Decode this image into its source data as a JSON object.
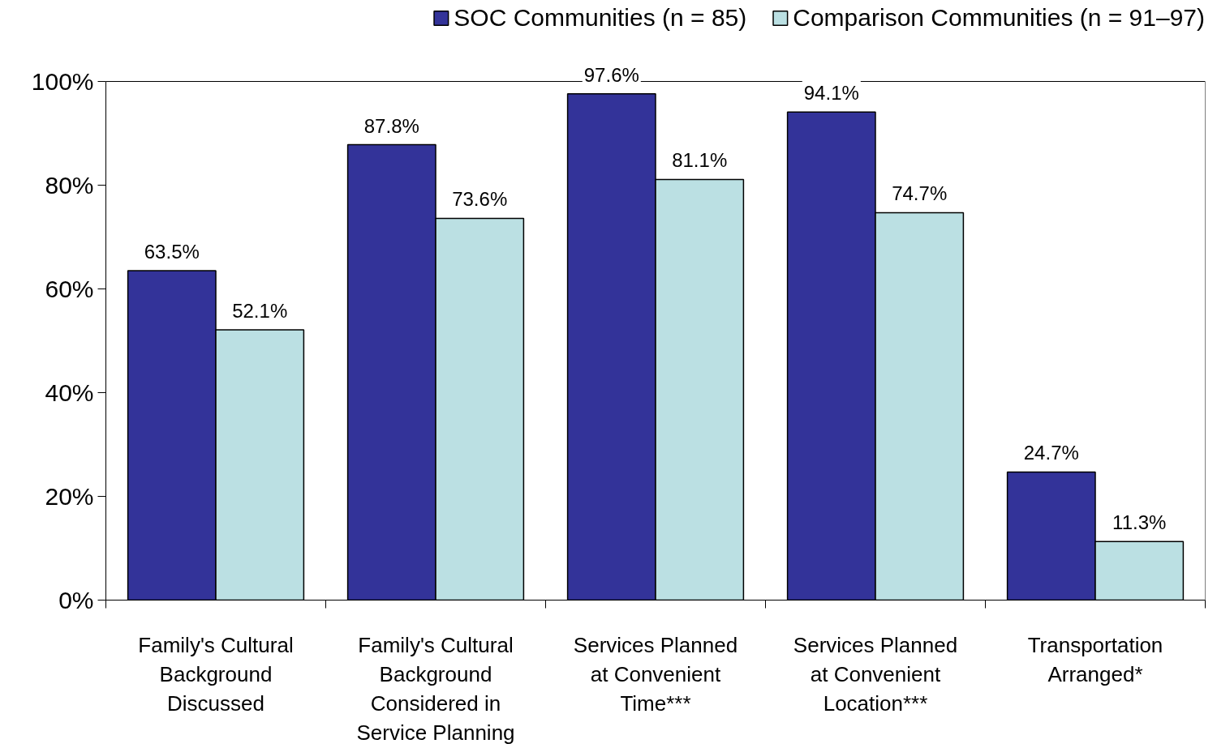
{
  "chart_data": {
    "type": "bar",
    "categories": [
      "Family's Cultural Background Discussed",
      "Family's Cultural Background Considered in Service Planning",
      "Services Planned at Convenient Time***",
      "Services Planned at Convenient Location***",
      "Transportation Arranged*"
    ],
    "series": [
      {
        "name": "SOC Communities (n = 85)",
        "color": "#333399",
        "values": [
          63.5,
          87.8,
          97.6,
          94.1,
          24.7
        ],
        "value_labels": [
          "63.5%",
          "87.8%",
          "97.6%",
          "94.1%",
          "24.7%"
        ]
      },
      {
        "name": "Comparison Communities (n = 91–97)",
        "color": "#bbe0e3",
        "values": [
          52.1,
          73.6,
          81.1,
          74.7,
          11.3
        ],
        "value_labels": [
          "52.1%",
          "73.6%",
          "81.1%",
          "74.7%",
          "11.3%"
        ]
      }
    ],
    "ylim": [
      0,
      100
    ],
    "yticks": [
      {
        "value": 0,
        "label": "0%"
      },
      {
        "value": 20,
        "label": "20%"
      },
      {
        "value": 40,
        "label": "40%"
      },
      {
        "value": 60,
        "label": "60%"
      },
      {
        "value": 80,
        "label": "80%"
      },
      {
        "value": 100,
        "label": "100%"
      }
    ],
    "grid": false,
    "legend": "top"
  }
}
